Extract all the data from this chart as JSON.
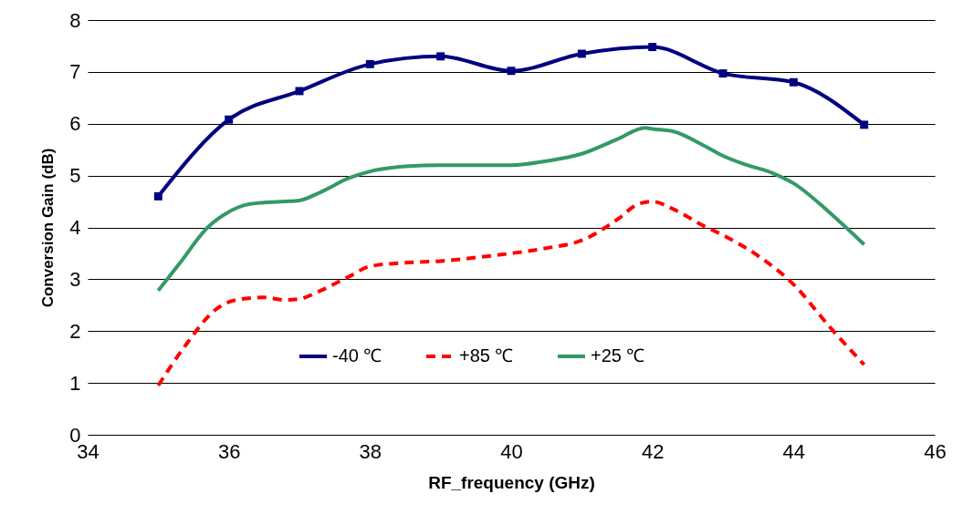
{
  "chart_data": {
    "type": "line",
    "xlabel": "RF_frequency (GHz)",
    "ylabel": "Conversion Gain (dB)",
    "xlim": [
      34,
      46
    ],
    "xticks": [
      34,
      36,
      38,
      40,
      42,
      44,
      46
    ],
    "ylim": [
      0,
      8
    ],
    "yticks": [
      0,
      1,
      2,
      3,
      4,
      5,
      6,
      7,
      8
    ],
    "grid": "y",
    "legend": "bottom",
    "series": [
      {
        "name": "-40 ℃",
        "color": "#000080",
        "marker": "square",
        "line_style": "solid",
        "x": [
          35,
          36,
          37,
          38,
          39,
          40,
          41,
          42,
          43,
          44,
          45
        ],
        "values": [
          4.6,
          6.08,
          6.63,
          7.15,
          7.3,
          7.02,
          7.35,
          7.48,
          6.97,
          6.8,
          5.98
        ]
      },
      {
        "name": "+85 ℃",
        "color": "#ff0000",
        "marker": "none",
        "line_style": "dashed",
        "x": [
          35,
          35.4,
          35.8,
          36.1,
          36.5,
          36.8,
          37,
          37.3,
          37.7,
          38,
          38.5,
          39,
          39.5,
          40,
          40.5,
          41,
          41.5,
          41.8,
          42,
          42.3,
          42.7,
          43,
          43.5,
          44,
          44.5,
          45
        ],
        "values": [
          0.95,
          1.75,
          2.4,
          2.6,
          2.65,
          2.6,
          2.62,
          2.78,
          3.05,
          3.25,
          3.32,
          3.35,
          3.42,
          3.5,
          3.6,
          3.75,
          4.15,
          4.45,
          4.5,
          4.35,
          4.05,
          3.85,
          3.45,
          2.9,
          2.1,
          1.35
        ]
      },
      {
        "name": "+25 ℃",
        "color": "#339966",
        "marker": "none",
        "line_style": "solid",
        "x": [
          35,
          35.3,
          35.7,
          36,
          36.2,
          36.5,
          36.8,
          37,
          37.3,
          37.7,
          38,
          38.3,
          38.5,
          39,
          40,
          40.5,
          41,
          41.5,
          41.9,
          42,
          42.3,
          42.7,
          43,
          43.3,
          43.7,
          44,
          44.5,
          45
        ],
        "values": [
          2.78,
          3.3,
          4.0,
          4.3,
          4.42,
          4.48,
          4.5,
          4.52,
          4.68,
          4.95,
          5.08,
          5.15,
          5.18,
          5.2,
          5.2,
          5.28,
          5.42,
          5.7,
          5.92,
          5.9,
          5.85,
          5.6,
          5.38,
          5.22,
          5.05,
          4.85,
          4.3,
          3.67
        ]
      }
    ]
  }
}
